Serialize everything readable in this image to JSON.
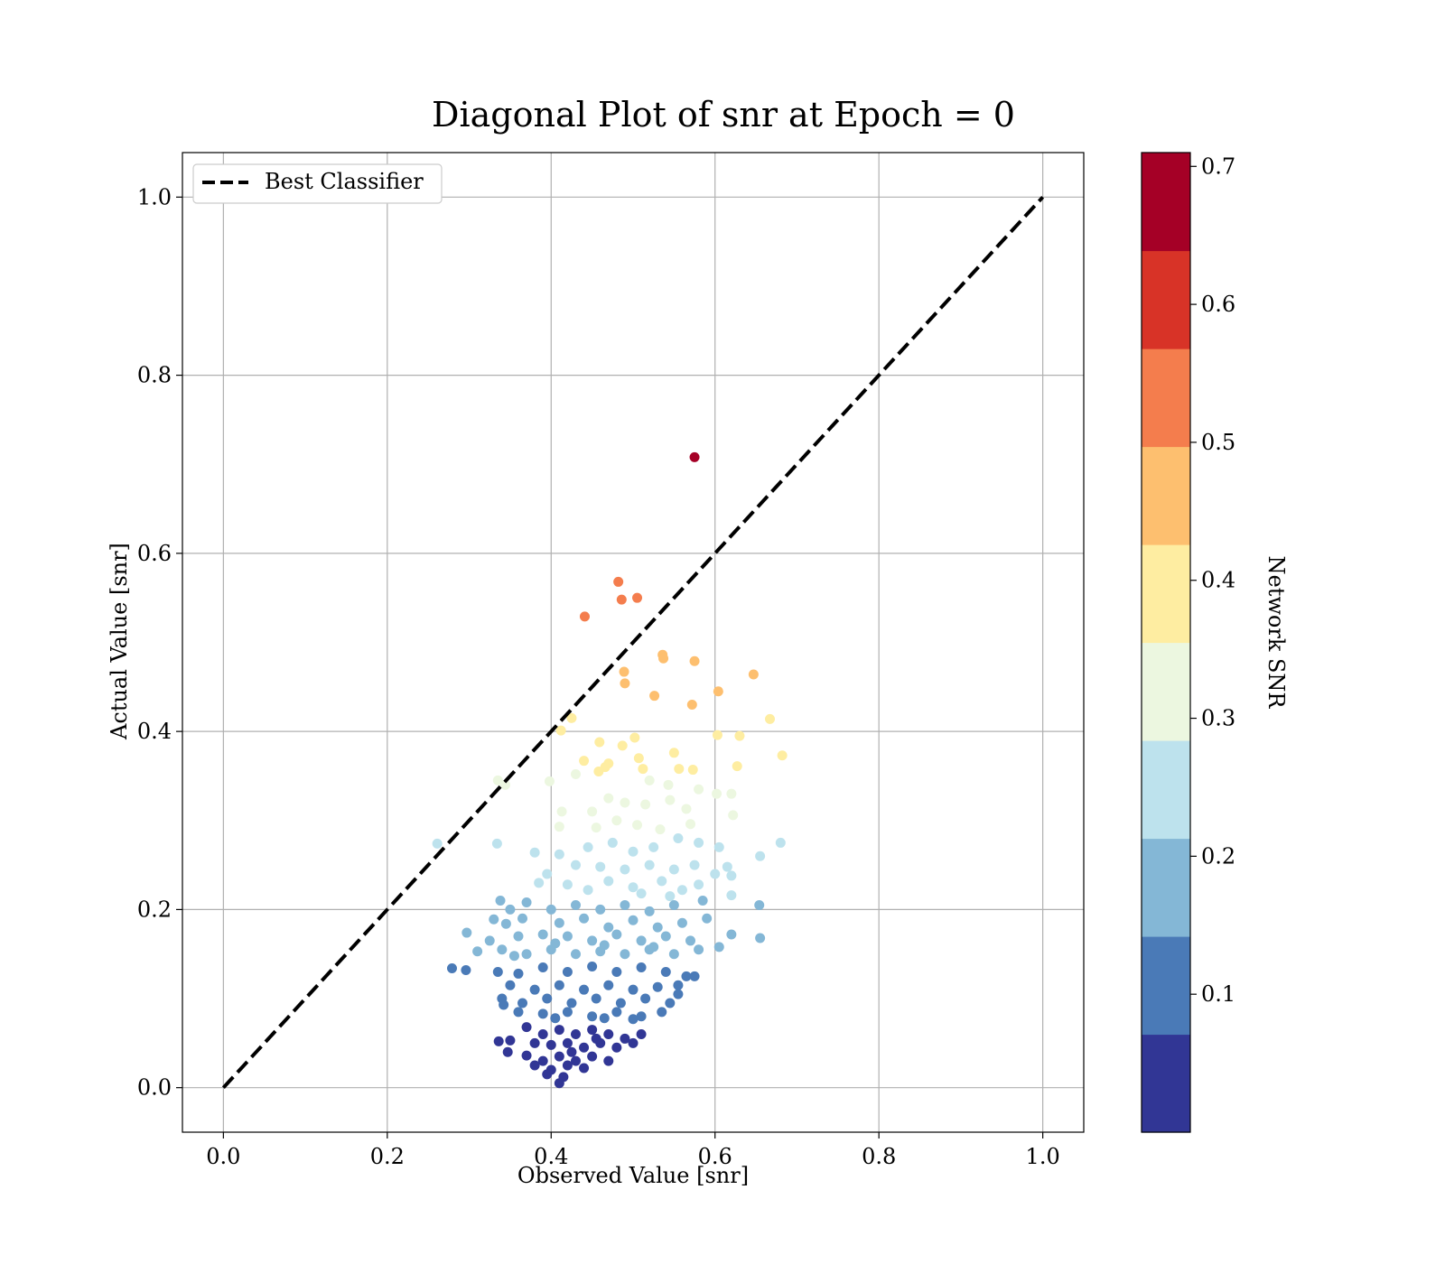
{
  "chart_data": {
    "type": "scatter",
    "title": "Diagonal Plot of snr at Epoch = 0",
    "xlabel": "Observed Value [snr]",
    "ylabel": "Actual Value [snr]",
    "xlim": [
      -0.05,
      1.05
    ],
    "ylim": [
      -0.05,
      1.05
    ],
    "xticks": [
      "0.0",
      "0.2",
      "0.4",
      "0.6",
      "0.8",
      "1.0"
    ],
    "yticks": [
      "0.0",
      "0.2",
      "0.4",
      "0.6",
      "0.8",
      "1.0"
    ],
    "grid": true,
    "legend": {
      "position": "top-left",
      "entries": [
        {
          "label": "Best Classifier",
          "style": "dashed",
          "color": "#000000"
        }
      ]
    },
    "diagonal": {
      "x": [
        0,
        1
      ],
      "y": [
        0,
        1
      ],
      "name": "Best Classifier"
    },
    "colorbar": {
      "label": "Network SNR",
      "range": [
        0.0,
        0.71
      ],
      "ticks": [
        "0.1",
        "0.2",
        "0.3",
        "0.4",
        "0.5",
        "0.6",
        "0.7"
      ],
      "colors": [
        "#313695",
        "#4a7ab7",
        "#84b7d6",
        "#bde2ed",
        "#ecf7e0",
        "#feeda1",
        "#fdbf6f",
        "#f47d4d",
        "#d83327",
        "#a50026"
      ]
    },
    "points": [
      [
        0.575,
        0.708
      ],
      [
        0.482,
        0.568
      ],
      [
        0.486,
        0.548
      ],
      [
        0.505,
        0.55
      ],
      [
        0.441,
        0.529
      ],
      [
        0.536,
        0.486
      ],
      [
        0.537,
        0.482
      ],
      [
        0.575,
        0.479
      ],
      [
        0.489,
        0.467
      ],
      [
        0.647,
        0.464
      ],
      [
        0.49,
        0.454
      ],
      [
        0.604,
        0.445
      ],
      [
        0.526,
        0.44
      ],
      [
        0.572,
        0.43
      ],
      [
        0.425,
        0.415
      ],
      [
        0.667,
        0.414
      ],
      [
        0.412,
        0.401
      ],
      [
        0.603,
        0.396
      ],
      [
        0.63,
        0.395
      ],
      [
        0.502,
        0.393
      ],
      [
        0.459,
        0.388
      ],
      [
        0.487,
        0.384
      ],
      [
        0.55,
        0.376
      ],
      [
        0.682,
        0.373
      ],
      [
        0.507,
        0.37
      ],
      [
        0.44,
        0.367
      ],
      [
        0.47,
        0.364
      ],
      [
        0.466,
        0.36
      ],
      [
        0.627,
        0.361
      ],
      [
        0.556,
        0.358
      ],
      [
        0.573,
        0.357
      ],
      [
        0.512,
        0.358
      ],
      [
        0.458,
        0.355
      ],
      [
        0.43,
        0.352
      ],
      [
        0.335,
        0.345
      ],
      [
        0.398,
        0.344
      ],
      [
        0.344,
        0.34
      ],
      [
        0.52,
        0.345
      ],
      [
        0.543,
        0.34
      ],
      [
        0.58,
        0.335
      ],
      [
        0.602,
        0.33
      ],
      [
        0.62,
        0.33
      ],
      [
        0.47,
        0.325
      ],
      [
        0.49,
        0.32
      ],
      [
        0.515,
        0.318
      ],
      [
        0.545,
        0.323
      ],
      [
        0.45,
        0.31
      ],
      [
        0.565,
        0.313
      ],
      [
        0.622,
        0.306
      ],
      [
        0.413,
        0.31
      ],
      [
        0.48,
        0.3
      ],
      [
        0.505,
        0.295
      ],
      [
        0.533,
        0.29
      ],
      [
        0.455,
        0.292
      ],
      [
        0.41,
        0.293
      ],
      [
        0.57,
        0.296
      ],
      [
        0.261,
        0.274
      ],
      [
        0.334,
        0.274
      ],
      [
        0.38,
        0.264
      ],
      [
        0.41,
        0.262
      ],
      [
        0.445,
        0.27
      ],
      [
        0.475,
        0.275
      ],
      [
        0.5,
        0.265
      ],
      [
        0.525,
        0.27
      ],
      [
        0.555,
        0.28
      ],
      [
        0.58,
        0.275
      ],
      [
        0.605,
        0.27
      ],
      [
        0.68,
        0.275
      ],
      [
        0.655,
        0.26
      ],
      [
        0.43,
        0.25
      ],
      [
        0.46,
        0.248
      ],
      [
        0.49,
        0.245
      ],
      [
        0.52,
        0.25
      ],
      [
        0.55,
        0.245
      ],
      [
        0.575,
        0.25
      ],
      [
        0.615,
        0.248
      ],
      [
        0.6,
        0.24
      ],
      [
        0.62,
        0.238
      ],
      [
        0.395,
        0.24
      ],
      [
        0.385,
        0.23
      ],
      [
        0.42,
        0.228
      ],
      [
        0.47,
        0.232
      ],
      [
        0.5,
        0.225
      ],
      [
        0.535,
        0.232
      ],
      [
        0.56,
        0.222
      ],
      [
        0.58,
        0.228
      ],
      [
        0.445,
        0.222
      ],
      [
        0.51,
        0.218
      ],
      [
        0.545,
        0.215
      ],
      [
        0.338,
        0.21
      ],
      [
        0.37,
        0.208
      ],
      [
        0.35,
        0.2
      ],
      [
        0.4,
        0.2
      ],
      [
        0.43,
        0.205
      ],
      [
        0.46,
        0.2
      ],
      [
        0.49,
        0.205
      ],
      [
        0.52,
        0.198
      ],
      [
        0.55,
        0.205
      ],
      [
        0.585,
        0.21
      ],
      [
        0.62,
        0.216
      ],
      [
        0.654,
        0.205
      ],
      [
        0.365,
        0.19
      ],
      [
        0.33,
        0.189
      ],
      [
        0.345,
        0.184
      ],
      [
        0.41,
        0.185
      ],
      [
        0.44,
        0.19
      ],
      [
        0.47,
        0.18
      ],
      [
        0.5,
        0.188
      ],
      [
        0.53,
        0.18
      ],
      [
        0.56,
        0.185
      ],
      [
        0.59,
        0.19
      ],
      [
        0.297,
        0.174
      ],
      [
        0.325,
        0.165
      ],
      [
        0.36,
        0.17
      ],
      [
        0.39,
        0.172
      ],
      [
        0.42,
        0.17
      ],
      [
        0.45,
        0.165
      ],
      [
        0.48,
        0.172
      ],
      [
        0.51,
        0.165
      ],
      [
        0.54,
        0.17
      ],
      [
        0.57,
        0.165
      ],
      [
        0.605,
        0.158
      ],
      [
        0.62,
        0.172
      ],
      [
        0.655,
        0.168
      ],
      [
        0.31,
        0.153
      ],
      [
        0.34,
        0.155
      ],
      [
        0.37,
        0.15
      ],
      [
        0.4,
        0.155
      ],
      [
        0.43,
        0.15
      ],
      [
        0.46,
        0.153
      ],
      [
        0.49,
        0.15
      ],
      [
        0.52,
        0.155
      ],
      [
        0.55,
        0.15
      ],
      [
        0.58,
        0.155
      ],
      [
        0.355,
        0.148
      ],
      [
        0.405,
        0.162
      ],
      [
        0.465,
        0.16
      ],
      [
        0.525,
        0.158
      ],
      [
        0.279,
        0.134
      ],
      [
        0.296,
        0.132
      ],
      [
        0.335,
        0.13
      ],
      [
        0.36,
        0.128
      ],
      [
        0.39,
        0.135
      ],
      [
        0.42,
        0.13
      ],
      [
        0.45,
        0.136
      ],
      [
        0.48,
        0.13
      ],
      [
        0.51,
        0.135
      ],
      [
        0.54,
        0.13
      ],
      [
        0.565,
        0.125
      ],
      [
        0.575,
        0.125
      ],
      [
        0.35,
        0.115
      ],
      [
        0.38,
        0.11
      ],
      [
        0.41,
        0.115
      ],
      [
        0.44,
        0.11
      ],
      [
        0.47,
        0.115
      ],
      [
        0.5,
        0.11
      ],
      [
        0.53,
        0.113
      ],
      [
        0.555,
        0.115
      ],
      [
        0.34,
        0.1
      ],
      [
        0.365,
        0.095
      ],
      [
        0.395,
        0.1
      ],
      [
        0.425,
        0.095
      ],
      [
        0.455,
        0.1
      ],
      [
        0.485,
        0.095
      ],
      [
        0.515,
        0.1
      ],
      [
        0.545,
        0.095
      ],
      [
        0.36,
        0.085
      ],
      [
        0.39,
        0.083
      ],
      [
        0.42,
        0.085
      ],
      [
        0.45,
        0.08
      ],
      [
        0.48,
        0.085
      ],
      [
        0.51,
        0.08
      ],
      [
        0.535,
        0.085
      ],
      [
        0.405,
        0.078
      ],
      [
        0.465,
        0.078
      ],
      [
        0.5,
        0.077
      ],
      [
        0.555,
        0.105
      ],
      [
        0.342,
        0.093
      ],
      [
        0.37,
        0.068
      ],
      [
        0.39,
        0.06
      ],
      [
        0.41,
        0.065
      ],
      [
        0.43,
        0.06
      ],
      [
        0.45,
        0.065
      ],
      [
        0.47,
        0.06
      ],
      [
        0.49,
        0.055
      ],
      [
        0.51,
        0.06
      ],
      [
        0.336,
        0.052
      ],
      [
        0.35,
        0.053
      ],
      [
        0.38,
        0.05
      ],
      [
        0.4,
        0.048
      ],
      [
        0.42,
        0.05
      ],
      [
        0.44,
        0.045
      ],
      [
        0.46,
        0.05
      ],
      [
        0.48,
        0.045
      ],
      [
        0.5,
        0.05
      ],
      [
        0.347,
        0.04
      ],
      [
        0.37,
        0.036
      ],
      [
        0.39,
        0.03
      ],
      [
        0.41,
        0.035
      ],
      [
        0.43,
        0.03
      ],
      [
        0.45,
        0.035
      ],
      [
        0.47,
        0.03
      ],
      [
        0.38,
        0.025
      ],
      [
        0.4,
        0.02
      ],
      [
        0.42,
        0.025
      ],
      [
        0.44,
        0.022
      ],
      [
        0.395,
        0.015
      ],
      [
        0.415,
        0.012
      ],
      [
        0.41,
        0.005
      ],
      [
        0.425,
        0.04
      ],
      [
        0.455,
        0.055
      ]
    ]
  }
}
